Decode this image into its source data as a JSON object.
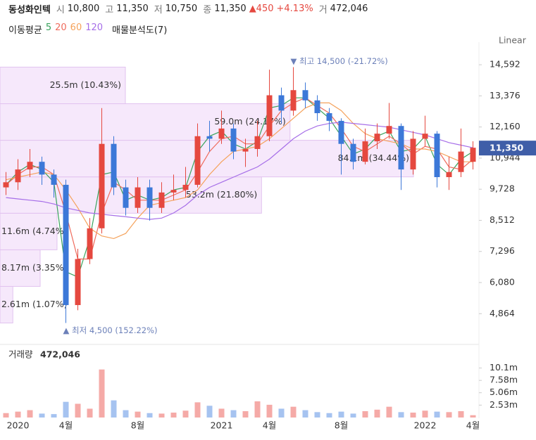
{
  "header": {
    "name": "동성화인텍",
    "open_label": "시",
    "open": "10,800",
    "high_label": "고",
    "high": "11,350",
    "low_label": "저",
    "low": "10,750",
    "close_label": "종",
    "close": "11,350",
    "change": "▲450",
    "change_pct": "+4.13%",
    "volume_label": "거",
    "volume": "472,046"
  },
  "chart_data": {
    "type": "candlestick",
    "scale": "Linear",
    "legend_title": "이동평균",
    "categories": [
      null,
      "2020",
      null,
      null,
      null,
      "4월",
      null,
      null,
      null,
      null,
      null,
      "8월",
      null,
      null,
      null,
      null,
      null,
      null,
      "2021",
      null,
      null,
      null,
      "4월",
      null,
      null,
      null,
      null,
      null,
      "8월",
      null,
      null,
      null,
      null,
      null,
      null,
      "2022",
      null,
      null,
      null,
      "4월"
    ],
    "open": [
      9800,
      10000,
      10500,
      10800,
      10300,
      9900,
      5200,
      7000,
      8200,
      11500,
      9800,
      9000,
      9800,
      9000,
      9600,
      9700,
      9900,
      11800,
      11700,
      12100,
      11200,
      11300,
      11800,
      13400,
      12800,
      13600,
      13200,
      12700,
      12400,
      11500,
      10800,
      11600,
      11900,
      12200,
      10500,
      11700,
      11900,
      10200,
      10400,
      10800
    ],
    "high": [
      10400,
      10900,
      11300,
      11000,
      10500,
      10100,
      7400,
      8600,
      12900,
      11800,
      10100,
      10200,
      10100,
      10000,
      10300,
      10600,
      12300,
      12400,
      12800,
      12300,
      11700,
      12400,
      14400,
      13700,
      14500,
      13900,
      13400,
      12900,
      12500,
      11700,
      12100,
      12300,
      13100,
      12300,
      12000,
      12600,
      12000,
      11000,
      12100,
      11600
    ],
    "low": [
      9500,
      9700,
      10200,
      9900,
      9400,
      4500,
      5000,
      6800,
      8000,
      9500,
      8700,
      8800,
      8500,
      8800,
      9300,
      9400,
      9800,
      11200,
      11500,
      10900,
      10600,
      11000,
      11600,
      12300,
      12600,
      12900,
      12400,
      12000,
      10300,
      10500,
      10700,
      11300,
      11700,
      9700,
      10300,
      11400,
      9800,
      9700,
      10200,
      10500
    ],
    "close": [
      10000,
      10500,
      10800,
      10300,
      9900,
      5200,
      7000,
      8200,
      11500,
      9800,
      9000,
      9800,
      9000,
      9600,
      9700,
      9900,
      11800,
      11700,
      12100,
      11200,
      11300,
      11800,
      13400,
      12800,
      13600,
      13200,
      12700,
      12400,
      11500,
      10800,
      11600,
      11900,
      12200,
      10500,
      11700,
      11900,
      10200,
      10400,
      11200,
      11350
    ],
    "up_color": "#e5483f",
    "down_color": "#3c78d8",
    "series": [
      {
        "name": "5",
        "color": "#3aa35d",
        "values": [
          9900,
          10400,
          10700,
          10500,
          10000,
          6500,
          6300,
          7800,
          10300,
          10400,
          9300,
          9500,
          9300,
          9400,
          9700,
          9800,
          11200,
          11800,
          12000,
          11500,
          11300,
          11600,
          12900,
          13000,
          13300,
          13300,
          12900,
          12500,
          11800,
          11100,
          11300,
          11800,
          12000,
          11200,
          11300,
          11800,
          10700,
          10300,
          10900,
          11200
        ]
      },
      {
        "name": "20",
        "color": "#ef6b5c",
        "values": [
          9900,
          10300,
          10600,
          10600,
          10300,
          8800,
          7000,
          7000,
          8800,
          10000,
          9700,
          9300,
          9300,
          9300,
          9500,
          9700,
          10400,
          11200,
          11700,
          11800,
          11500,
          11500,
          12200,
          12800,
          13100,
          13300,
          13000,
          12700,
          12100,
          11400,
          11200,
          11500,
          11800,
          11500,
          11100,
          11400,
          11300,
          10600,
          10500,
          10900
        ]
      },
      {
        "name": "60",
        "color": "#f5a25b",
        "values": [
          10100,
          10200,
          10300,
          10400,
          10300,
          9700,
          9000,
          8200,
          7900,
          7800,
          8000,
          8600,
          9100,
          9200,
          9300,
          9400,
          9700,
          10300,
          10800,
          11200,
          11300,
          11400,
          11700,
          12100,
          12500,
          12900,
          13100,
          13100,
          12800,
          12300,
          11900,
          11700,
          11600,
          11500,
          11300,
          11300,
          11200,
          11000,
          10800,
          10800
        ]
      },
      {
        "name": "120",
        "color": "#a66ee8",
        "values": [
          9400,
          9350,
          9300,
          9250,
          9150,
          9000,
          8900,
          8800,
          8750,
          8700,
          8650,
          8600,
          8550,
          8600,
          8800,
          9100,
          9500,
          9800,
          10000,
          10200,
          10400,
          10600,
          10900,
          11300,
          11700,
          12000,
          12200,
          12300,
          12350,
          12300,
          12250,
          12200,
          12150,
          12050,
          11950,
          11850,
          11700,
          11550,
          11450,
          11350
        ]
      }
    ],
    "ylim": [
      3800,
      15200
    ],
    "yticks": [
      {
        "value": 4864,
        "label": "4,864"
      },
      {
        "value": 6080,
        "label": "6,080"
      },
      {
        "value": 7296,
        "label": "7,296"
      },
      {
        "value": 8512,
        "label": "8,512"
      },
      {
        "value": 9728,
        "label": "9,728"
      },
      {
        "value": 10944,
        "label": "10,944"
      },
      {
        "value": 12160,
        "label": "12,160"
      },
      {
        "value": 13376,
        "label": "13,376"
      },
      {
        "value": 14592,
        "label": "14,592"
      }
    ],
    "price_tag": {
      "value": 11350,
      "label": "11,350",
      "color": "#3f5ea8"
    },
    "high_note": "▼ 최고 14,500 (-21.72%)",
    "low_note": "▲ 최저 4,500 (152.22%)",
    "note_color": "#6c80b9",
    "volume_profile": {
      "name": "매물분석도(7)",
      "color": "#f6e8fb",
      "border": "#e2c3ef",
      "bins": [
        4500,
        5930,
        7360,
        8790,
        10210,
        11640,
        13070,
        14500
      ],
      "values": [
        2610000,
        8170000,
        11600000,
        53200000,
        84100000,
        59000000,
        25500000
      ],
      "value_labels": [
        "2.61m (1.07%)",
        "8.17m (3.35%)",
        "11.6m (4.74%)",
        "53.2m (21.80%)",
        "84.1m (34.44%)",
        "59.0m (24.17%)",
        "25.5m (10.43%)"
      ]
    },
    "volume": {
      "title": "거래량",
      "up_color": "#f5aaa7",
      "down_color": "#a6c3f0",
      "values": [
        900000,
        1200000,
        1500000,
        800000,
        700000,
        3200000,
        2800000,
        1800000,
        9800000,
        3500000,
        1500000,
        1200000,
        900000,
        800000,
        1000000,
        1400000,
        3100000,
        2400000,
        1800000,
        1500000,
        1300000,
        3300000,
        2600000,
        1800000,
        2200000,
        1500000,
        1100000,
        900000,
        1200000,
        800000,
        1300000,
        1600000,
        2200000,
        1100000,
        1000000,
        1400000,
        1200000,
        1100000,
        1300000,
        472046
      ],
      "ylim": [
        0,
        14200000
      ],
      "yticks": [
        {
          "value": 2530000,
          "label": "2.53m"
        },
        {
          "value": 5060000,
          "label": "5.06m"
        },
        {
          "value": 7580000,
          "label": "7.58m"
        },
        {
          "value": 10100000,
          "label": "10.1m"
        }
      ]
    }
  }
}
